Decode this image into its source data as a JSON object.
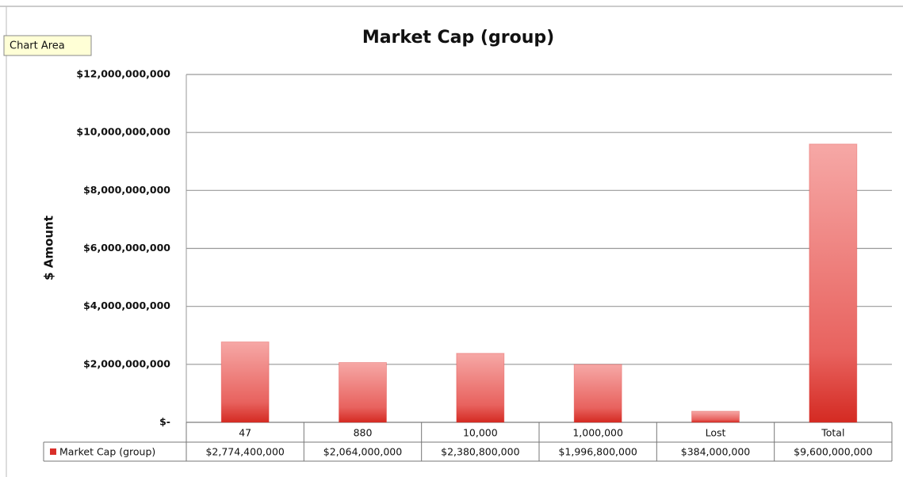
{
  "chart_data": {
    "type": "bar",
    "title": "Market Cap (group)",
    "tooltip": "Chart Area",
    "y_label": "$ Amount",
    "categories": [
      "47",
      "880",
      "10,000",
      "1,000,000",
      "Lost",
      "Total"
    ],
    "series": [
      {
        "name": "Market Cap (group)",
        "color": "#d9302a",
        "values": [
          2774400000,
          2064000000,
          2380800000,
          1996800000,
          384000000,
          9600000000
        ],
        "value_labels": [
          "$2,774,400,000",
          "$2,064,000,000",
          "$2,380,800,000",
          "$1,996,800,000",
          "$384,000,000",
          "$9,600,000,000"
        ]
      }
    ],
    "ylim": [
      0,
      12000000000
    ],
    "yticks": [
      {
        "value": 0,
        "label": "$-"
      },
      {
        "value": 2000000000,
        "label": "$2,000,000,000"
      },
      {
        "value": 4000000000,
        "label": "$4,000,000,000"
      },
      {
        "value": 6000000000,
        "label": "$6,000,000,000"
      },
      {
        "value": 8000000000,
        "label": "$8,000,000,000"
      },
      {
        "value": 10000000000,
        "label": "$10,000,000,000"
      },
      {
        "value": 12000000000,
        "label": "$12,000,000,000"
      }
    ],
    "grid": true
  }
}
